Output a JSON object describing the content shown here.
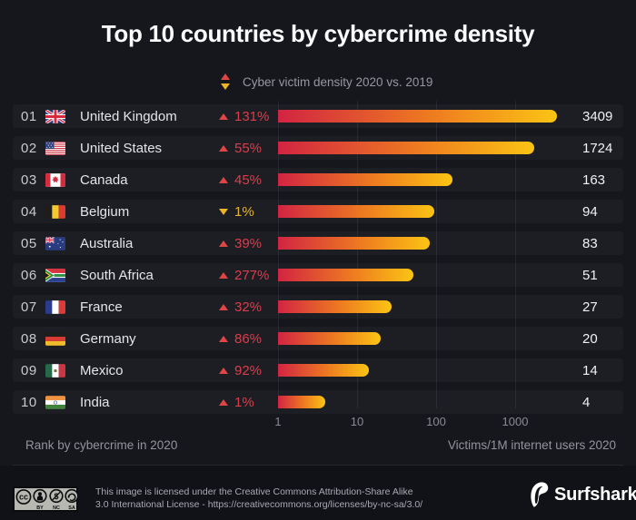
{
  "title": "Top 10 countries by cybercrime density",
  "legend": {
    "label": "Cyber victim density 2020 vs. 2019"
  },
  "chart_data": {
    "type": "bar",
    "orientation": "horizontal",
    "x_scale": "log",
    "x_ticks": [
      1,
      10,
      100,
      1000
    ],
    "xlim": [
      1,
      10000
    ],
    "grid": "vertical",
    "xlabel": "Victims/1M internet users 2020",
    "footnote_left": "Rank by cybercrime in 2020",
    "categories": [
      "United Kingdom",
      "United States",
      "Canada",
      "Belgium",
      "Australia",
      "South Africa",
      "France",
      "Germany",
      "Mexico",
      "India"
    ],
    "values": [
      3409,
      1724,
      163,
      94,
      83,
      51,
      27,
      20,
      14,
      4
    ],
    "rows": [
      {
        "rank": "01",
        "country": "United Kingdom",
        "flag": "gb",
        "change": "131%",
        "direction": "up",
        "value": 3409
      },
      {
        "rank": "02",
        "country": "United States",
        "flag": "us",
        "change": "55%",
        "direction": "up",
        "value": 1724
      },
      {
        "rank": "03",
        "country": "Canada",
        "flag": "ca",
        "change": "45%",
        "direction": "up",
        "value": 163
      },
      {
        "rank": "04",
        "country": "Belgium",
        "flag": "be",
        "change": "1%",
        "direction": "down",
        "value": 94
      },
      {
        "rank": "05",
        "country": "Australia",
        "flag": "au",
        "change": "39%",
        "direction": "up",
        "value": 83
      },
      {
        "rank": "06",
        "country": "South Africa",
        "flag": "za",
        "change": "277%",
        "direction": "up",
        "value": 51
      },
      {
        "rank": "07",
        "country": "France",
        "flag": "fr",
        "change": "32%",
        "direction": "up",
        "value": 27
      },
      {
        "rank": "08",
        "country": "Germany",
        "flag": "de",
        "change": "86%",
        "direction": "up",
        "value": 20
      },
      {
        "rank": "09",
        "country": "Mexico",
        "flag": "mx",
        "change": "92%",
        "direction": "up",
        "value": 14
      },
      {
        "rank": "10",
        "country": "India",
        "flag": "in",
        "change": "1%",
        "direction": "up",
        "value": 4
      }
    ]
  },
  "colors": {
    "background": "#16171d",
    "bar_gradient_start": "#d22442",
    "bar_gradient_mid": "#ee7b20",
    "bar_gradient_end": "#fbc414",
    "up": "#dc3d4b",
    "down": "#e8b427"
  },
  "footer": {
    "license_line1": "This image is licensed under the Creative Commons Attribution-Share Alike",
    "license_line2": "3.0 International License - https://creativecommons.org/licenses/by-nc-sa/3.0/",
    "cc_symbol": "cc",
    "cc_labels": [
      "BY",
      "NC",
      "SA"
    ],
    "brand": "Surfshark",
    "registered": "®"
  }
}
